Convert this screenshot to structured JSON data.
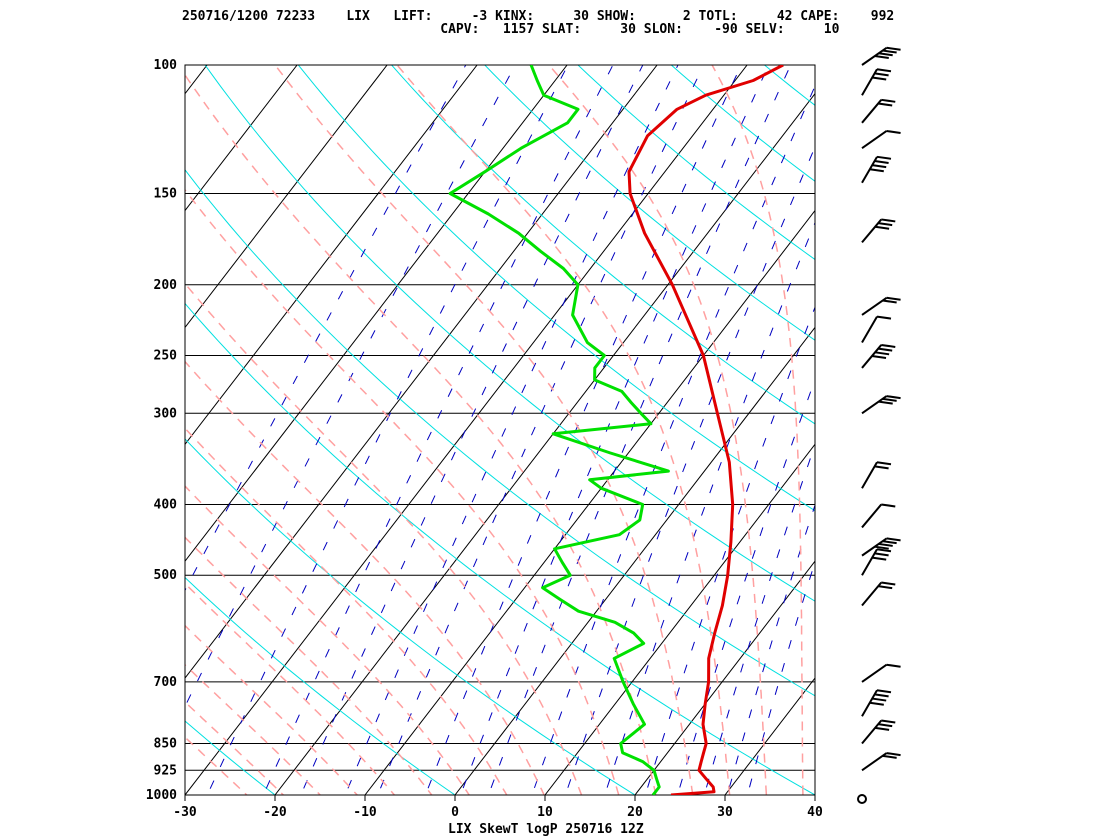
{
  "header": {
    "line1": "250716/1200 72233    LIX   LIFT:     -3 KINX:     30 SHOW:      2 TOTL:     42 CAPE:    992",
    "line2": "                                 CAPV:   1157 SLAT:     30 SLON:    -90 SELV:     10"
  },
  "footer": "LIX SkewT logP 250716 12Z",
  "colors": {
    "temperature": "#e00000",
    "dewpoint": "#00e000",
    "isotherm": "#000000",
    "dry_adiabat": "#00e0e0",
    "moist_adiabat": "#ffa0a0",
    "mixing_ratio": "#0000c0",
    "barb": "#000000"
  },
  "chart_data": {
    "type": "skew-t",
    "station": "LIX",
    "x": {
      "label": "",
      "lim": [
        -30,
        40
      ],
      "ticks": [
        -30,
        -20,
        -10,
        0,
        10,
        20,
        30,
        40
      ]
    },
    "y": {
      "label": "",
      "scale": "log",
      "lim": [
        1000,
        100
      ],
      "ticks": [
        1000,
        925,
        850,
        700,
        500,
        400,
        300,
        250,
        200,
        150,
        100
      ]
    },
    "temperature": [
      [
        1000,
        24
      ],
      [
        990,
        28.5
      ],
      [
        975,
        28
      ],
      [
        950,
        26.5
      ],
      [
        925,
        25
      ],
      [
        900,
        24.5
      ],
      [
        875,
        24
      ],
      [
        850,
        23.5
      ],
      [
        800,
        21.5
      ],
      [
        750,
        20
      ],
      [
        700,
        18.5
      ],
      [
        650,
        16.5
      ],
      [
        600,
        15
      ],
      [
        550,
        13.5
      ],
      [
        500,
        11.5
      ],
      [
        450,
        9
      ],
      [
        400,
        6
      ],
      [
        350,
        2
      ],
      [
        300,
        -3.5
      ],
      [
        250,
        -10
      ],
      [
        200,
        -19.5
      ],
      [
        170,
        -27
      ],
      [
        150,
        -32
      ],
      [
        140,
        -34
      ],
      [
        125,
        -35
      ],
      [
        115,
        -34
      ],
      [
        110,
        -32
      ],
      [
        105,
        -28
      ],
      [
        100,
        -26
      ]
    ],
    "dewpoint": [
      [
        1000,
        22
      ],
      [
        975,
        22
      ],
      [
        950,
        21
      ],
      [
        925,
        20
      ],
      [
        900,
        18
      ],
      [
        875,
        15
      ],
      [
        850,
        14
      ],
      [
        800,
        15
      ],
      [
        750,
        12
      ],
      [
        700,
        9
      ],
      [
        650,
        6
      ],
      [
        620,
        8
      ],
      [
        600,
        6
      ],
      [
        580,
        3
      ],
      [
        560,
        -2
      ],
      [
        540,
        -5
      ],
      [
        520,
        -8
      ],
      [
        500,
        -6
      ],
      [
        480,
        -8
      ],
      [
        460,
        -10
      ],
      [
        440,
        -4
      ],
      [
        420,
        -3
      ],
      [
        400,
        -4
      ],
      [
        380,
        -10
      ],
      [
        370,
        -12
      ],
      [
        360,
        -4
      ],
      [
        340,
        -12
      ],
      [
        320,
        -20
      ],
      [
        310,
        -10
      ],
      [
        300,
        -12
      ],
      [
        290,
        -14
      ],
      [
        280,
        -16
      ],
      [
        270,
        -20
      ],
      [
        260,
        -21
      ],
      [
        250,
        -21
      ],
      [
        240,
        -24
      ],
      [
        220,
        -28
      ],
      [
        200,
        -30
      ],
      [
        190,
        -33
      ],
      [
        180,
        -37
      ],
      [
        170,
        -41
      ],
      [
        160,
        -46
      ],
      [
        150,
        -52
      ],
      [
        140,
        -50
      ],
      [
        130,
        -48
      ],
      [
        120,
        -45
      ],
      [
        115,
        -45
      ],
      [
        110,
        -50
      ],
      [
        105,
        -52
      ],
      [
        100,
        -54
      ]
    ],
    "wind_barbs": [
      [
        1000,
        "calm"
      ],
      [
        925,
        "barb"
      ],
      [
        850,
        "barb"
      ],
      [
        780,
        "barb"
      ],
      [
        700,
        "barb"
      ],
      [
        550,
        "barb"
      ],
      [
        500,
        "barb"
      ],
      [
        470,
        "barb"
      ],
      [
        430,
        "barb"
      ],
      [
        380,
        "barb"
      ],
      [
        300,
        "barb"
      ],
      [
        260,
        "barb"
      ],
      [
        240,
        "barb"
      ],
      [
        220,
        "barb"
      ],
      [
        175,
        "barb"
      ],
      [
        145,
        "barb"
      ],
      [
        130,
        "barb"
      ],
      [
        120,
        "barb"
      ],
      [
        110,
        "barb"
      ],
      [
        100,
        "barb"
      ]
    ]
  }
}
